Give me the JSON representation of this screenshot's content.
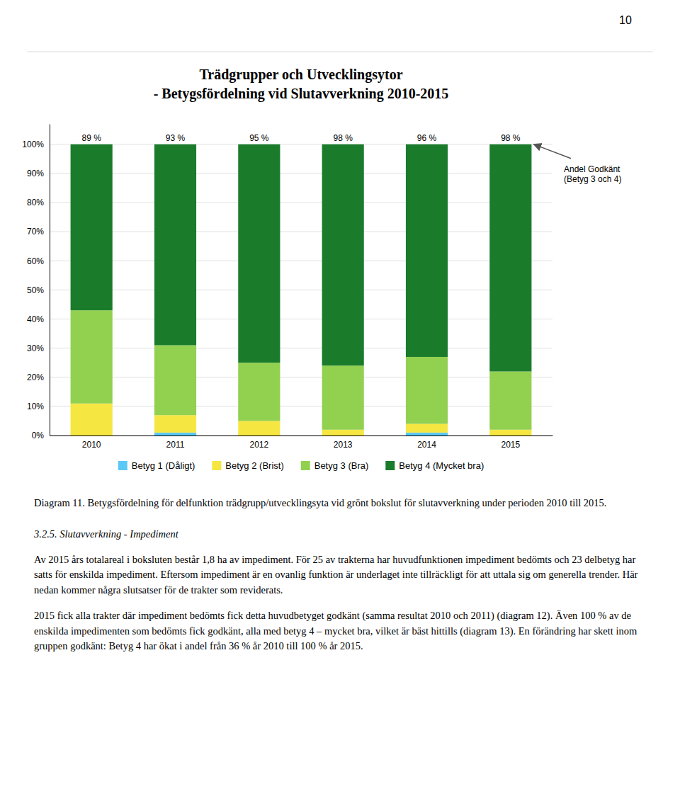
{
  "page_number": "10",
  "chart_data": {
    "type": "bar",
    "stacked": true,
    "title": "Trädgrupper och Utvecklingsytor",
    "subtitle": "- Betygsfördelning vid Slutavverkning 2010-2015",
    "categories": [
      "2010",
      "2011",
      "2012",
      "2013",
      "2014",
      "2015"
    ],
    "series": [
      {
        "name": "Betyg 1 (Dåligt)",
        "color": "#5BC8F5",
        "values": [
          0,
          1,
          0,
          0,
          1,
          0
        ]
      },
      {
        "name": "Betyg 2 (Brist)",
        "color": "#F5E642",
        "values": [
          11,
          6,
          5,
          2,
          3,
          2
        ]
      },
      {
        "name": "Betyg 3 (Bra)",
        "color": "#92D050",
        "values": [
          32,
          24,
          20,
          22,
          23,
          20
        ]
      },
      {
        "name": "Betyg 4 (Mycket bra)",
        "color": "#1A7C2B",
        "values": [
          57,
          69,
          75,
          76,
          73,
          78
        ]
      }
    ],
    "approved": {
      "values": [
        89,
        93,
        95,
        98,
        96,
        98
      ],
      "value_labels": [
        "89 %",
        "93 %",
        "95 %",
        "98 %",
        "96 %",
        "98 %"
      ]
    },
    "annotation": "Andel Godkänt\n(Betyg 3 och 4)",
    "ylim": [
      0,
      107
    ],
    "yticks": [
      {
        "value": 0,
        "label": "0%"
      },
      {
        "value": 10,
        "label": "10%"
      },
      {
        "value": 20,
        "label": "20%"
      },
      {
        "value": 30,
        "label": "30%"
      },
      {
        "value": 40,
        "label": "40%"
      },
      {
        "value": 50,
        "label": "50%"
      },
      {
        "value": 60,
        "label": "60%"
      },
      {
        "value": 70,
        "label": "70%"
      },
      {
        "value": 80,
        "label": "80%"
      },
      {
        "value": 90,
        "label": "90%"
      },
      {
        "value": 100,
        "label": "100%"
      }
    ],
    "grid": true,
    "legend": "bottom"
  },
  "caption": "Diagram 11. Betygsfördelning för delfunktion trädgrupp/utvecklingsyta vid grönt bokslut för slutavverkning under perioden 2010 till 2015.",
  "section_heading": "3.2.5.  Slutavverkning - Impediment",
  "paragraphs": [
    "Av 2015 års totalareal i boksluten består 1,8 ha av impediment. För 25 av trakterna har huvudfunktionen impediment bedömts och 23 delbetyg har satts för enskilda impediment. Eftersom impediment är en ovanlig funktion är underlaget inte tillräckligt för att uttala sig om generella trender. Här nedan kommer några slutsatser för de trakter som reviderats.",
    "2015 fick alla trakter där impediment bedömts fick detta huvudbetyget godkänt (samma resultat 2010 och 2011) (diagram 12). Även 100 % av de enskilda impedimenten som bedömts fick godkänt, alla med betyg 4 – mycket bra, vilket är bäst hittills (diagram 13). En förändring har skett inom gruppen godkänt: Betyg 4 har ökat i andel från 36 % år 2010 till 100 % år 2015."
  ]
}
